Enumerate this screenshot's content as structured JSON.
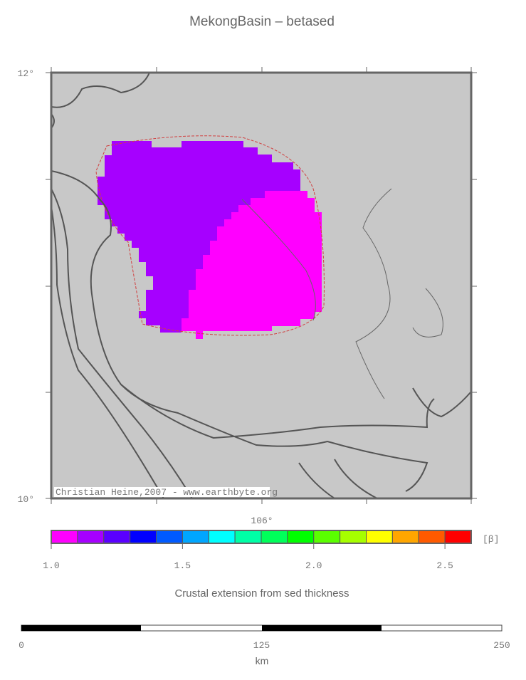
{
  "title": "MekongBasin – betased",
  "map": {
    "lat_labels": [
      "12°",
      "10°"
    ],
    "lon_label": "106°",
    "credit": "Christian Heine,2007 - www.earthbyte.org"
  },
  "colorbar": {
    "colors": [
      "#ff00ff",
      "#a600ff",
      "#5a00ff",
      "#0000ff",
      "#005aff",
      "#00a6ff",
      "#00ffff",
      "#00ffa6",
      "#00ff5a",
      "#00ff00",
      "#5aff00",
      "#a6ff00",
      "#ffff00",
      "#ffa600",
      "#ff5a00",
      "#ff0000"
    ],
    "lim": [
      1.0,
      2.6
    ],
    "ticks": [
      {
        "value": 1.0,
        "label": "1.0"
      },
      {
        "value": 1.5,
        "label": "1.5"
      },
      {
        "value": 2.0,
        "label": "2.0"
      },
      {
        "value": 2.5,
        "label": "2.5"
      }
    ],
    "unit": "[β]",
    "label": "Crustal extension from sed thickness"
  },
  "scale_bar": {
    "ticks": [
      0,
      125,
      250
    ],
    "unit": "km"
  }
}
